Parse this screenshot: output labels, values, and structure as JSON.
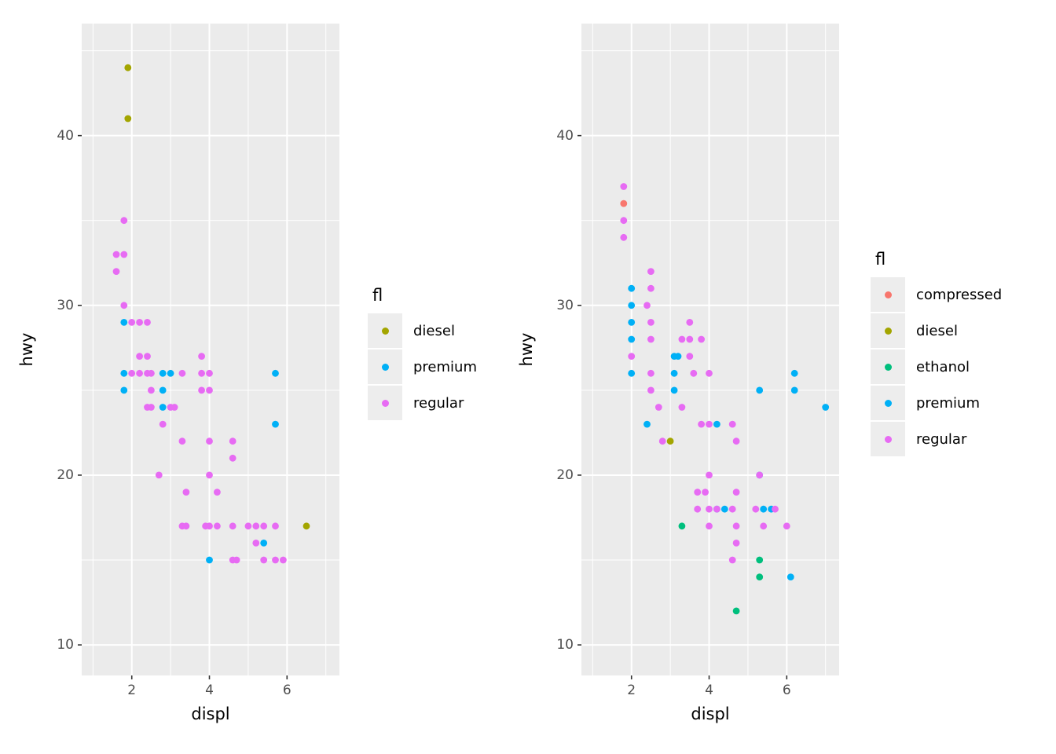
{
  "colors": {
    "panel_background": "#EBEBEB",
    "grid": "#FFFFFF",
    "tick_text": "#4D4D4D",
    "tick_mark": "#333333",
    "axis_title_text": "#000000",
    "legend_key_background": "#EDEDED",
    "compressed": "#F8766D",
    "diesel": "#A3A500",
    "ethanol": "#00BF7D",
    "premium": "#00B0F6",
    "regular": "#E76BF3"
  },
  "chart_data": [
    {
      "type": "scatter",
      "title": "",
      "xlabel": "displ",
      "ylabel": "hwy",
      "legend_title": "fl",
      "legend_position": "right",
      "grid": true,
      "xlim": [
        0.71,
        7.35
      ],
      "ylim": [
        8.2,
        46.6
      ],
      "x_major_ticks": [
        2,
        4,
        6
      ],
      "x_minor_ticks": [
        1,
        3,
        5,
        7
      ],
      "y_major_ticks": [
        10,
        20,
        30,
        40
      ],
      "y_minor_ticks": [
        15,
        25,
        35,
        45
      ],
      "series": [
        {
          "name": "diesel",
          "color": "#A3A500",
          "points": [
            [
              1.9,
              44
            ],
            [
              1.9,
              41
            ],
            [
              6.5,
              17
            ]
          ]
        },
        {
          "name": "premium",
          "color": "#00B0F6",
          "points": [
            [
              1.8,
              29
            ],
            [
              1.8,
              26
            ],
            [
              1.8,
              25
            ],
            [
              2.8,
              26
            ],
            [
              3.0,
              26
            ],
            [
              2.8,
              25
            ],
            [
              2.8,
              24
            ],
            [
              5.7,
              26
            ],
            [
              5.7,
              23
            ],
            [
              5.4,
              16
            ],
            [
              4.0,
              15
            ]
          ]
        },
        {
          "name": "regular",
          "color": "#E76BF3",
          "points": [
            [
              1.8,
              35
            ],
            [
              1.6,
              33
            ],
            [
              1.8,
              33
            ],
            [
              1.6,
              32
            ],
            [
              1.8,
              30
            ],
            [
              2.0,
              29
            ],
            [
              2.2,
              29
            ],
            [
              2.4,
              29
            ],
            [
              2.2,
              27
            ],
            [
              2.4,
              27
            ],
            [
              3.8,
              27
            ],
            [
              2.0,
              26
            ],
            [
              2.2,
              26
            ],
            [
              2.4,
              26
            ],
            [
              2.5,
              26
            ],
            [
              3.3,
              26
            ],
            [
              3.8,
              26
            ],
            [
              4.0,
              26
            ],
            [
              2.5,
              25
            ],
            [
              3.8,
              25
            ],
            [
              4.0,
              25
            ],
            [
              2.4,
              24
            ],
            [
              2.5,
              24
            ],
            [
              3.0,
              24
            ],
            [
              3.1,
              24
            ],
            [
              2.8,
              23
            ],
            [
              3.3,
              22
            ],
            [
              4.0,
              22
            ],
            [
              4.6,
              22
            ],
            [
              4.6,
              21
            ],
            [
              2.7,
              20
            ],
            [
              4.0,
              20
            ],
            [
              3.4,
              19
            ],
            [
              4.2,
              19
            ],
            [
              3.3,
              17
            ],
            [
              3.4,
              17
            ],
            [
              3.9,
              17
            ],
            [
              4.0,
              17
            ],
            [
              4.2,
              17
            ],
            [
              4.6,
              17
            ],
            [
              5.0,
              17
            ],
            [
              5.2,
              17
            ],
            [
              5.4,
              17
            ],
            [
              5.7,
              17
            ],
            [
              5.2,
              16
            ],
            [
              4.6,
              15
            ],
            [
              4.7,
              15
            ],
            [
              5.4,
              15
            ],
            [
              5.7,
              15
            ],
            [
              5.9,
              15
            ]
          ]
        }
      ]
    },
    {
      "type": "scatter",
      "title": "",
      "xlabel": "displ",
      "ylabel": "hwy",
      "legend_title": "fl",
      "legend_position": "right",
      "grid": true,
      "xlim": [
        0.71,
        7.35
      ],
      "ylim": [
        8.2,
        46.6
      ],
      "x_major_ticks": [
        2,
        4,
        6
      ],
      "x_minor_ticks": [
        1,
        3,
        5,
        7
      ],
      "y_major_ticks": [
        10,
        20,
        30,
        40
      ],
      "y_minor_ticks": [
        15,
        25,
        35,
        45
      ],
      "series": [
        {
          "name": "compressed",
          "color": "#F8766D",
          "points": [
            [
              1.8,
              36
            ]
          ]
        },
        {
          "name": "diesel",
          "color": "#A3A500",
          "points": [
            [
              3.0,
              22
            ]
          ]
        },
        {
          "name": "ethanol",
          "color": "#00BF7D",
          "points": [
            [
              3.3,
              17
            ],
            [
              5.3,
              15
            ],
            [
              5.3,
              14
            ],
            [
              4.7,
              12
            ]
          ]
        },
        {
          "name": "premium",
          "color": "#00B0F6",
          "points": [
            [
              2.0,
              31
            ],
            [
              2.0,
              30
            ],
            [
              2.0,
              29
            ],
            [
              2.0,
              28
            ],
            [
              2.0,
              26
            ],
            [
              2.4,
              23
            ],
            [
              3.1,
              27
            ],
            [
              3.2,
              27
            ],
            [
              3.1,
              26
            ],
            [
              3.1,
              25
            ],
            [
              4.2,
              23
            ],
            [
              4.2,
              18
            ],
            [
              4.4,
              18
            ],
            [
              5.3,
              25
            ],
            [
              5.3,
              20
            ],
            [
              5.4,
              18
            ],
            [
              5.6,
              18
            ],
            [
              6.1,
              14
            ],
            [
              6.2,
              26
            ],
            [
              6.2,
              25
            ],
            [
              7.0,
              24
            ]
          ]
        },
        {
          "name": "regular",
          "color": "#E76BF3",
          "points": [
            [
              1.8,
              37
            ],
            [
              1.8,
              35
            ],
            [
              1.8,
              34
            ],
            [
              2.5,
              32
            ],
            [
              2.5,
              31
            ],
            [
              2.4,
              30
            ],
            [
              2.5,
              29
            ],
            [
              3.5,
              29
            ],
            [
              2.5,
              28
            ],
            [
              3.3,
              28
            ],
            [
              3.5,
              28
            ],
            [
              3.8,
              28
            ],
            [
              2.0,
              27
            ],
            [
              3.5,
              27
            ],
            [
              2.5,
              26
            ],
            [
              3.6,
              26
            ],
            [
              4.0,
              26
            ],
            [
              2.5,
              25
            ],
            [
              2.7,
              24
            ],
            [
              3.3,
              24
            ],
            [
              3.8,
              23
            ],
            [
              4.0,
              23
            ],
            [
              4.6,
              23
            ],
            [
              2.8,
              22
            ],
            [
              4.7,
              22
            ],
            [
              4.0,
              20
            ],
            [
              5.3,
              20
            ],
            [
              3.7,
              19
            ],
            [
              3.9,
              19
            ],
            [
              4.7,
              19
            ],
            [
              3.7,
              18
            ],
            [
              4.0,
              18
            ],
            [
              4.2,
              18
            ],
            [
              4.6,
              18
            ],
            [
              5.2,
              18
            ],
            [
              5.7,
              18
            ],
            [
              4.0,
              17
            ],
            [
              4.7,
              17
            ],
            [
              5.4,
              17
            ],
            [
              6.0,
              17
            ],
            [
              4.7,
              16
            ],
            [
              4.6,
              15
            ]
          ]
        }
      ]
    }
  ]
}
